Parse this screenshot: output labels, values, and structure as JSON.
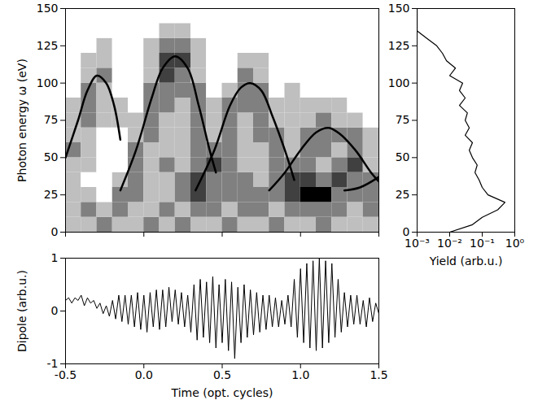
{
  "chart_data": [
    {
      "type": "heatmap",
      "ylabel": "Photon energy ω (eV)",
      "xlim": [
        -0.5,
        1.5
      ],
      "xticks": [
        -0.5,
        {
          "value": 0,
          "label": "0.0"
        },
        0.5,
        {
          "value": 1,
          "label": "1.0"
        },
        1.5
      ],
      "ylim": [
        0,
        150
      ],
      "yticks": [
        0,
        25,
        50,
        75,
        100,
        125,
        150
      ],
      "tick_labels": "y",
      "xbins": [
        -0.5,
        -0.4,
        -0.3,
        -0.2,
        -0.1,
        0,
        0.1,
        0.2,
        0.3,
        0.4,
        0.5,
        0.6,
        0.7,
        0.8,
        0.9,
        1.0,
        1.1,
        1.2,
        1.3,
        1.4,
        1.5
      ],
      "ybins": [
        0,
        10,
        20,
        30,
        40,
        50,
        60,
        70,
        80,
        90,
        100,
        110,
        120,
        130,
        140,
        150
      ],
      "zlim": [
        0,
        4
      ],
      "cells": [
        [
          1,
          1,
          2,
          1,
          1,
          2,
          1,
          2,
          1,
          1,
          2,
          1,
          1,
          2,
          1,
          1,
          2,
          1,
          1,
          1
        ],
        [
          1,
          2,
          1,
          2,
          1,
          1,
          2,
          1,
          2,
          2,
          1,
          2,
          2,
          1,
          2,
          2,
          2,
          2,
          1,
          2
        ],
        [
          1,
          1,
          0,
          2,
          2,
          1,
          1,
          2,
          3,
          2,
          2,
          2,
          2,
          2,
          3,
          4,
          4,
          2,
          2,
          2
        ],
        [
          1,
          0,
          0,
          1,
          2,
          1,
          1,
          2,
          3,
          2,
          2,
          2,
          1,
          2,
          3,
          3,
          2,
          3,
          2,
          2
        ],
        [
          1,
          1,
          0,
          0,
          2,
          1,
          2,
          1,
          2,
          3,
          2,
          1,
          1,
          2,
          2,
          2,
          1,
          2,
          3,
          1
        ],
        [
          2,
          1,
          0,
          0,
          2,
          1,
          1,
          1,
          2,
          2,
          2,
          1,
          1,
          2,
          1,
          2,
          2,
          1,
          2,
          1
        ],
        [
          1,
          1,
          0,
          0,
          1,
          2,
          1,
          1,
          2,
          1,
          2,
          1,
          2,
          2,
          1,
          2,
          2,
          2,
          2,
          1
        ],
        [
          1,
          2,
          1,
          1,
          1,
          2,
          1,
          1,
          2,
          1,
          2,
          1,
          2,
          1,
          1,
          1,
          2,
          1,
          1,
          0
        ],
        [
          1,
          2,
          1,
          1,
          0,
          2,
          2,
          1,
          2,
          1,
          2,
          2,
          2,
          1,
          1,
          1,
          1,
          1,
          0,
          0
        ],
        [
          0,
          2,
          1,
          0,
          0,
          2,
          2,
          2,
          2,
          0,
          1,
          2,
          2,
          0,
          1,
          0,
          0,
          0,
          0,
          0
        ],
        [
          0,
          1,
          2,
          0,
          0,
          1,
          3,
          2,
          1,
          0,
          0,
          2,
          1,
          0,
          0,
          0,
          0,
          0,
          0,
          0
        ],
        [
          0,
          1,
          1,
          0,
          0,
          1,
          3,
          3,
          1,
          0,
          0,
          1,
          1,
          0,
          0,
          0,
          0,
          0,
          0,
          0
        ],
        [
          0,
          0,
          1,
          0,
          0,
          1,
          2,
          2,
          1,
          0,
          0,
          0,
          0,
          0,
          0,
          0,
          0,
          0,
          0,
          0
        ],
        [
          0,
          0,
          0,
          0,
          0,
          0,
          1,
          1,
          0,
          0,
          0,
          0,
          0,
          0,
          0,
          0,
          0,
          0,
          0,
          0
        ],
        [
          0,
          0,
          0,
          0,
          0,
          0,
          0,
          0,
          0,
          0,
          0,
          0,
          0,
          0,
          0,
          0,
          0,
          0,
          0,
          0
        ]
      ],
      "color": "#000000",
      "curves": [
        {
          "x": [
            -0.5,
            -0.42,
            -0.36,
            -0.3,
            -0.24,
            -0.19,
            -0.15
          ],
          "y": [
            50,
            75,
            95,
            105,
            100,
            85,
            62
          ]
        },
        {
          "x": [
            -0.15,
            -0.05,
            0.05,
            0.12,
            0.2,
            0.28,
            0.35,
            0.42,
            0.46
          ],
          "y": [
            28,
            55,
            90,
            110,
            118,
            110,
            85,
            55,
            40
          ]
        },
        {
          "x": [
            0.33,
            0.45,
            0.55,
            0.62,
            0.68,
            0.75,
            0.82,
            0.9,
            0.96
          ],
          "y": [
            28,
            55,
            85,
            97,
            100,
            95,
            78,
            55,
            35
          ]
        },
        {
          "x": [
            0.8,
            0.9,
            1.0,
            1.1,
            1.18,
            1.25,
            1.35,
            1.45,
            1.5
          ],
          "y": [
            28,
            40,
            55,
            67,
            70,
            66,
            55,
            40,
            34
          ]
        },
        {
          "x": [
            1.28,
            1.38,
            1.5
          ],
          "y": [
            28,
            30,
            37
          ]
        }
      ]
    },
    {
      "type": "line",
      "xlabel": "Yield (arb.u.)",
      "log": "x",
      "xlim": [
        0.001,
        1
      ],
      "xticks": [
        {
          "value": 0.001,
          "label": "10⁻³"
        },
        {
          "value": 0.01,
          "label": "10⁻²"
        },
        {
          "value": 0.1,
          "label": "10⁻¹"
        },
        {
          "value": 1,
          "label": "10⁰"
        }
      ],
      "ylim": [
        0,
        150
      ],
      "yticks": [
        0,
        25,
        50,
        75,
        100,
        125,
        150
      ],
      "color": "#000000",
      "x": [
        0.01,
        0.05,
        0.1,
        0.3,
        0.5,
        0.15,
        0.1,
        0.08,
        0.06,
        0.07,
        0.05,
        0.04,
        0.05,
        0.03,
        0.04,
        0.03,
        0.035,
        0.02,
        0.03,
        0.02,
        0.025,
        0.01,
        0.015,
        0.008,
        0.006,
        0.004,
        0.002,
        0.001,
        0.001,
        0.001,
        0.001
      ],
      "y": [
        0,
        5,
        10,
        15,
        20,
        25,
        30,
        35,
        40,
        45,
        50,
        55,
        60,
        65,
        70,
        75,
        80,
        85,
        90,
        95,
        100,
        105,
        110,
        115,
        120,
        125,
        130,
        135,
        140,
        145,
        150
      ]
    },
    {
      "type": "line",
      "xlabel": "Time (opt. cycles)",
      "ylabel": "Dipole (arb.u.)",
      "xlim": [
        -0.5,
        1.5
      ],
      "xticks": [
        -0.5,
        {
          "value": 0,
          "label": "0.0"
        },
        0.5,
        {
          "value": 1,
          "label": "1.0"
        },
        1.5
      ],
      "ylim": [
        -1,
        1
      ],
      "yticks": [
        -1,
        0,
        1
      ],
      "color": "#000000",
      "x": [
        -0.5,
        -0.48,
        -0.46,
        -0.44,
        -0.42,
        -0.4,
        -0.38,
        -0.36,
        -0.34,
        -0.32,
        -0.3,
        -0.28,
        -0.26,
        -0.24,
        -0.22,
        -0.2,
        -0.18,
        -0.16,
        -0.14,
        -0.12,
        -0.1,
        -0.08,
        -0.06,
        -0.04,
        -0.02,
        0,
        0.02,
        0.04,
        0.06,
        0.08,
        0.1,
        0.12,
        0.14,
        0.16,
        0.18,
        0.2,
        0.22,
        0.24,
        0.26,
        0.28,
        0.3,
        0.32,
        0.34,
        0.36,
        0.38,
        0.4,
        0.42,
        0.44,
        0.46,
        0.48,
        0.5,
        0.52,
        0.54,
        0.56,
        0.58,
        0.6,
        0.62,
        0.64,
        0.66,
        0.68,
        0.7,
        0.72,
        0.74,
        0.76,
        0.78,
        0.8,
        0.82,
        0.84,
        0.86,
        0.88,
        0.9,
        0.92,
        0.94,
        0.96,
        0.98,
        1,
        1.02,
        1.04,
        1.06,
        1.08,
        1.1,
        1.12,
        1.14,
        1.16,
        1.18,
        1.2,
        1.22,
        1.24,
        1.26,
        1.28,
        1.3,
        1.32,
        1.34,
        1.36,
        1.38,
        1.4,
        1.42,
        1.44,
        1.46,
        1.48,
        1.5
      ],
      "values": [
        0.2,
        0.25,
        0.15,
        0.25,
        0.2,
        0.3,
        0.1,
        0.25,
        0.15,
        0.2,
        0.05,
        0.15,
        -0.05,
        0.1,
        -0.1,
        0.2,
        -0.15,
        0.3,
        -0.2,
        0.3,
        -0.25,
        0.3,
        -0.3,
        0.35,
        -0.35,
        0.3,
        -0.4,
        0.35,
        -0.3,
        0.4,
        -0.35,
        0.4,
        -0.3,
        0.45,
        -0.2,
        0.4,
        -0.25,
        0.35,
        -0.3,
        0.3,
        -0.4,
        0.5,
        -0.55,
        0.6,
        -0.5,
        0.55,
        -0.6,
        0.65,
        -0.7,
        0.5,
        -0.6,
        0.6,
        -0.75,
        0.55,
        -0.9,
        0.45,
        -0.6,
        0.5,
        -0.5,
        0.4,
        -0.45,
        0.35,
        -0.4,
        0.3,
        -0.35,
        0.3,
        -0.3,
        0.25,
        -0.3,
        0.2,
        -0.25,
        0.3,
        -0.3,
        0.6,
        -0.5,
        0.8,
        -0.6,
        0.9,
        -0.7,
        0.95,
        -0.75,
        1.0,
        -0.7,
        0.95,
        -0.6,
        0.9,
        -0.5,
        0.6,
        -0.4,
        0.35,
        -0.3,
        0.3,
        -0.25,
        0.3,
        -0.25,
        0.2,
        -0.3,
        0.25,
        -0.2,
        0.15,
        -0.05
      ]
    }
  ]
}
